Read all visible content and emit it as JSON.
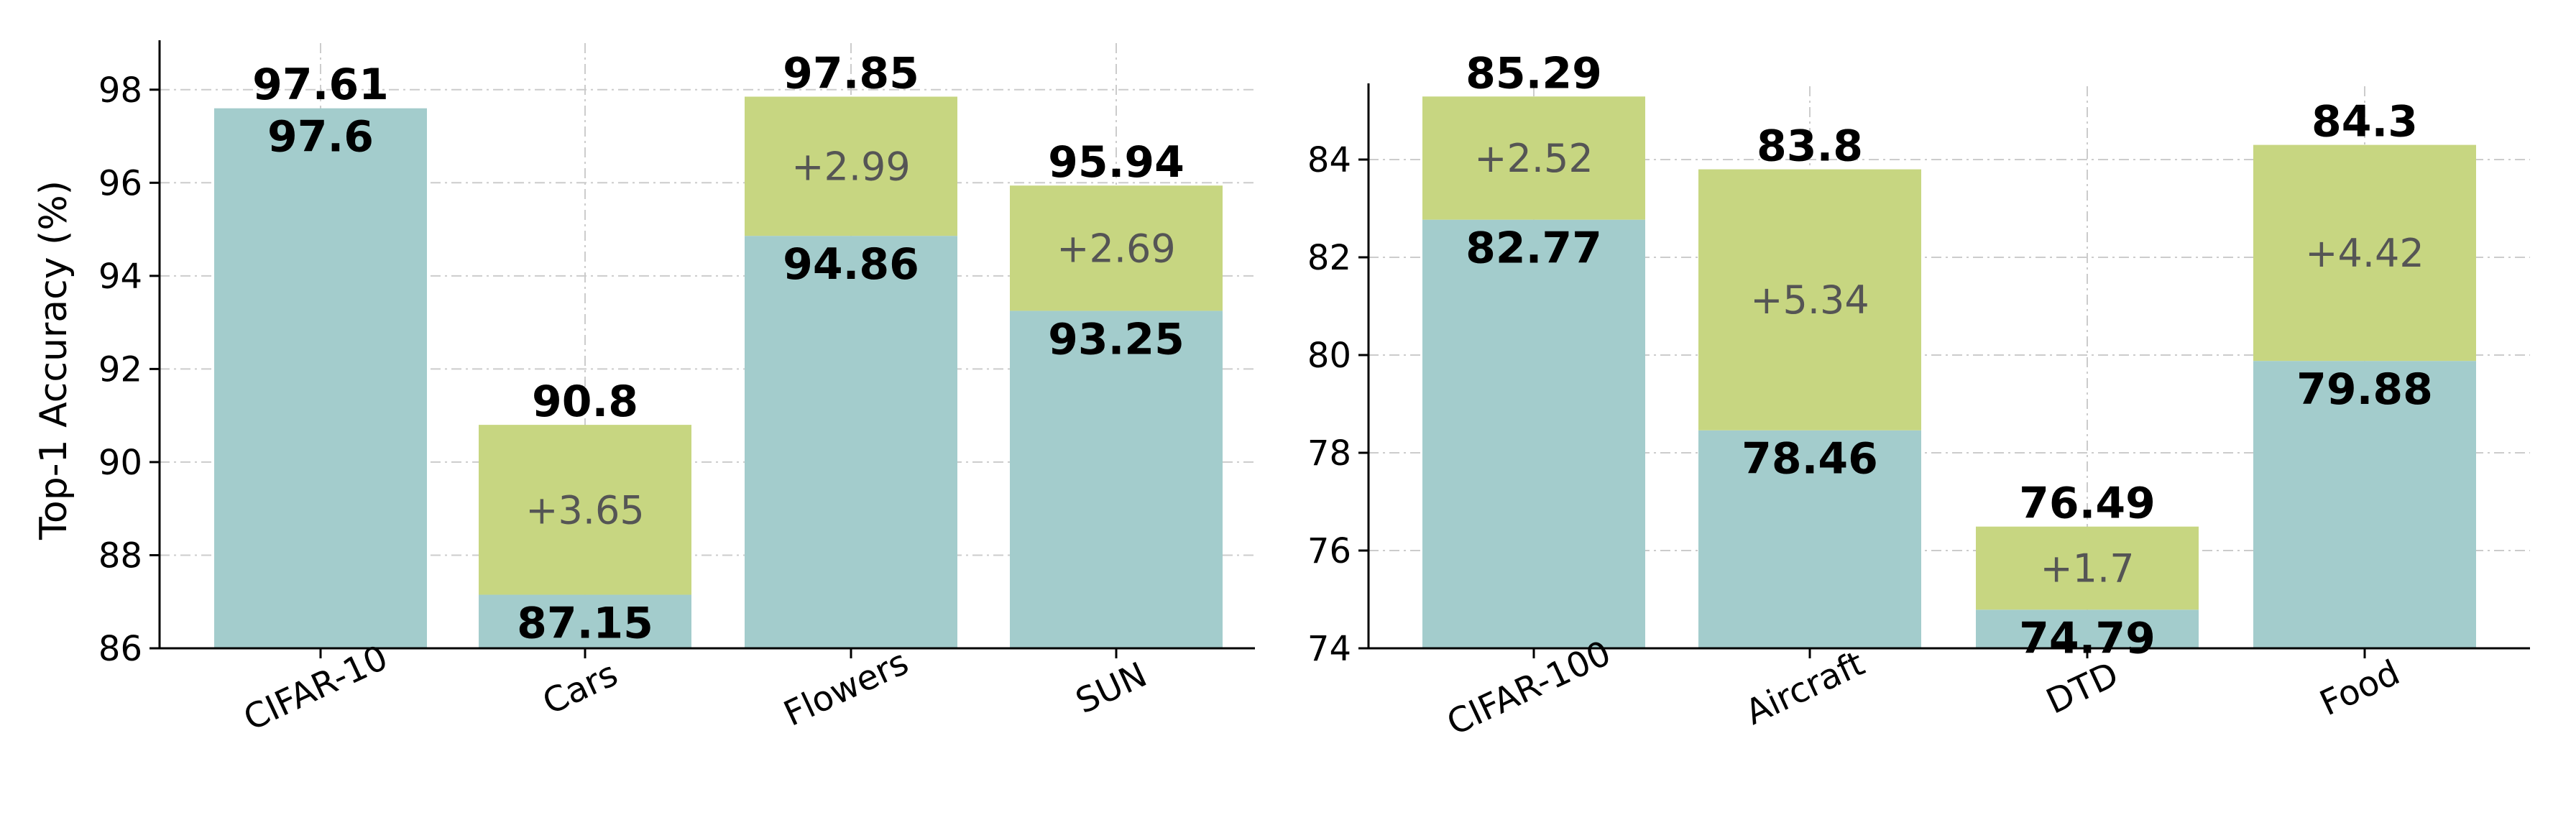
{
  "colors": {
    "base": "#a3cccc",
    "gain": "#c7d681"
  },
  "chart_data": [
    {
      "type": "bar",
      "stacked": true,
      "categories": [
        "CIFAR-10",
        "Cars",
        "Flowers",
        "SUN"
      ],
      "base": [
        97.6,
        87.15,
        94.86,
        93.25
      ],
      "total": [
        97.61,
        90.8,
        97.85,
        95.94
      ],
      "base_labels": [
        "97.6",
        "87.15",
        "94.86",
        "93.25"
      ],
      "total_labels": [
        "97.61",
        "90.8",
        "97.85",
        "95.94"
      ],
      "delta_labels": [
        "",
        "+3.65",
        "+2.99",
        "+2.69"
      ],
      "ylabel": "Top-1 Accuracy (%)",
      "ylim": [
        86,
        99
      ],
      "yticks": [
        86,
        88,
        90,
        92,
        94,
        96,
        98
      ],
      "grid": true
    },
    {
      "type": "bar",
      "stacked": true,
      "categories": [
        "CIFAR-100",
        "Aircraft",
        "DTD",
        "Food"
      ],
      "base": [
        82.77,
        78.46,
        74.79,
        79.88
      ],
      "total": [
        85.29,
        83.8,
        76.49,
        84.3
      ],
      "base_labels": [
        "82.77",
        "78.46",
        "74.79",
        "79.88"
      ],
      "total_labels": [
        "85.29",
        "83.8",
        "76.49",
        "84.3"
      ],
      "delta_labels": [
        "+2.52",
        "+5.34",
        "+1.7",
        "+4.42"
      ],
      "ylabel": "",
      "ylim": [
        74,
        85.5
      ],
      "yticks": [
        74,
        76,
        78,
        80,
        82,
        84
      ],
      "grid": true
    }
  ]
}
